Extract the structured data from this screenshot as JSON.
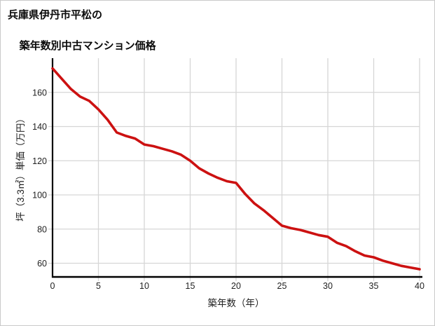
{
  "header": {
    "title_line1": "兵庫県伊丹市平松の",
    "title_line2": "築年数別中古マンション価格"
  },
  "chart_data": {
    "type": "line",
    "title": "兵庫県伊丹市平松の築年数別中古マンション価格",
    "xlabel": "築年数（年）",
    "ylabel": "坪（3.3㎡）単価（万円）",
    "x": [
      0,
      1,
      2,
      3,
      4,
      5,
      6,
      7,
      8,
      9,
      10,
      11,
      12,
      13,
      14,
      15,
      16,
      17,
      18,
      19,
      20,
      21,
      22,
      23,
      24,
      25,
      26,
      27,
      28,
      29,
      30,
      31,
      32,
      33,
      34,
      35,
      36,
      37,
      38,
      39,
      40
    ],
    "values": [
      174,
      168,
      162,
      157.5,
      155,
      150,
      144,
      136.5,
      134.5,
      133,
      129.5,
      128.5,
      127,
      125.5,
      123.5,
      120,
      115.5,
      112.5,
      110,
      108,
      107,
      100.5,
      95,
      91,
      86.5,
      82,
      80.5,
      79.5,
      78,
      76.5,
      75.5,
      72,
      70,
      67,
      64.5,
      63.5,
      61.5,
      60,
      58.5,
      57.5,
      56.5
    ],
    "xlim": [
      0,
      40
    ],
    "ylim": [
      52,
      180
    ],
    "xticks": [
      0,
      5,
      10,
      15,
      20,
      25,
      30,
      35,
      40
    ],
    "yticks": [
      60,
      80,
      100,
      120,
      140,
      160
    ],
    "grid": true,
    "legend": false,
    "line_color": "#cc1111",
    "axis_color": "#000000",
    "grid_color": "#d6d6d6",
    "text_color": "#222222"
  }
}
